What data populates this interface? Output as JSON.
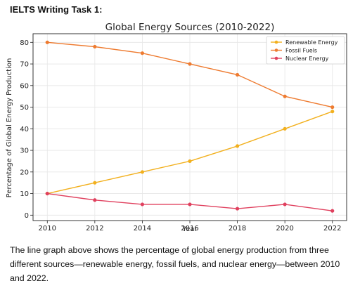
{
  "page": {
    "header": "IELTS Writing Task 1:",
    "caption": "The line graph above shows the percentage of global energy production from three different sources—renewable energy, fossil fuels, and nuclear energy—between 2010 and 2022."
  },
  "chart_data": {
    "type": "line",
    "title": "Global Energy Sources (2010-2022)",
    "xlabel": "Year",
    "ylabel": "Percentage of Global Energy Production",
    "x": [
      2010,
      2012,
      2014,
      2016,
      2018,
      2020,
      2022
    ],
    "xticks": [
      "2010",
      "2012",
      "2014",
      "2016",
      "2018",
      "2020",
      "2022"
    ],
    "yticks": [
      "0",
      "10",
      "20",
      "30",
      "40",
      "50",
      "60",
      "70",
      "80"
    ],
    "xlim": [
      2009.4,
      2022.6
    ],
    "ylim": [
      -2.5,
      84
    ],
    "grid": true,
    "legend_position": "top-right",
    "series": [
      {
        "name": "Renewable Energy",
        "color": "#f2b01e",
        "values": [
          10,
          15,
          20,
          25,
          32,
          40,
          48
        ]
      },
      {
        "name": "Fossil Fuels",
        "color": "#ee7b30",
        "values": [
          80,
          78,
          75,
          70,
          65,
          55,
          50
        ]
      },
      {
        "name": "Nuclear Energy",
        "color": "#e0405e",
        "values": [
          10,
          7,
          5,
          5,
          3,
          5,
          2
        ]
      }
    ]
  }
}
